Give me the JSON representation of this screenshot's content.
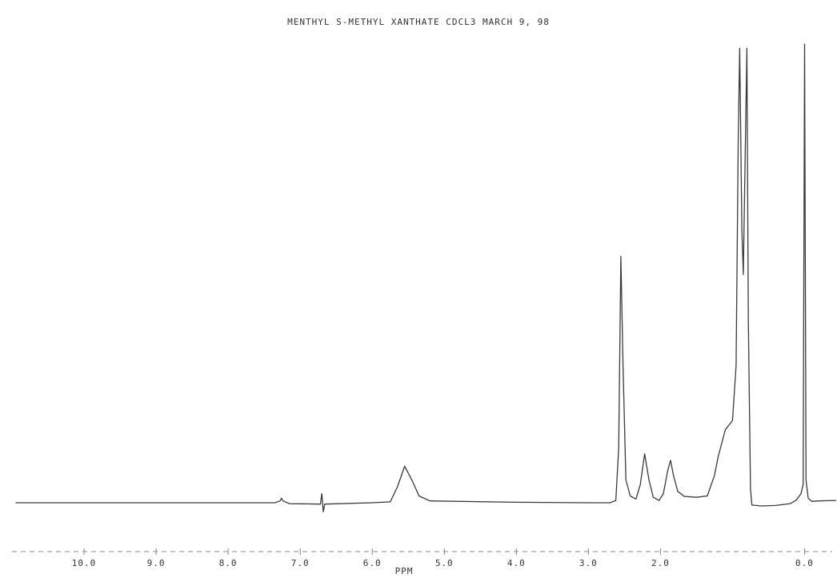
{
  "chart_data": {
    "type": "line",
    "title": "MENTHYL S-METHYL XANTHATE CDCL3 MARCH 9, 98",
    "x_label": "PPM",
    "xlim": [
      11,
      -0.45
    ],
    "ylim": [
      0,
      100
    ],
    "xticks": [
      {
        "value": 10,
        "label": "10.0"
      },
      {
        "value": 9,
        "label": "9.0"
      },
      {
        "value": 8,
        "label": "8.0"
      },
      {
        "value": 7,
        "label": "7.0"
      },
      {
        "value": 6,
        "label": "6.0"
      },
      {
        "value": 5,
        "label": "5.0"
      },
      {
        "value": 4,
        "label": "4.0"
      },
      {
        "value": 3,
        "label": "3.0"
      },
      {
        "value": 2,
        "label": "2.0"
      },
      {
        "value": 0,
        "label": "0.0"
      }
    ],
    "series": [
      {
        "color": "#3a3a3a",
        "x": [
          10.95,
          9.0,
          7.35,
          7.28,
          7.26,
          7.24,
          7.15,
          6.72,
          6.7,
          6.68,
          6.66,
          6.0,
          5.75,
          5.65,
          5.55,
          5.45,
          5.35,
          5.2,
          4.0,
          3.0,
          2.7,
          2.62,
          2.58,
          2.55,
          2.52,
          2.48,
          2.42,
          2.34,
          2.28,
          2.22,
          2.16,
          2.1,
          2.02,
          1.96,
          1.9,
          1.86,
          1.82,
          1.76,
          1.67,
          1.5,
          1.35,
          1.25,
          1.2,
          1.1,
          1.0,
          0.95,
          0.92,
          0.9,
          0.87,
          0.85,
          0.83,
          0.8,
          0.78,
          0.75,
          0.73,
          0.6,
          0.4,
          0.2,
          0.12,
          0.05,
          0.02,
          0.0,
          -0.02,
          -0.05,
          -0.1,
          -0.2,
          -0.44
        ],
        "values": [
          0,
          0,
          0,
          0.4,
          1.0,
          0.4,
          -0.2,
          -0.3,
          2.0,
          -2.0,
          -0.3,
          0,
          0.2,
          3.5,
          8.0,
          5.0,
          1.5,
          0.4,
          0.1,
          0,
          0,
          0.5,
          12,
          54,
          30,
          5,
          1.5,
          0.8,
          4,
          10.7,
          5,
          1.2,
          0.5,
          2,
          7,
          9.3,
          6,
          2.5,
          1.4,
          1.2,
          1.5,
          6,
          10,
          16,
          18,
          30,
          80,
          99.6,
          60,
          50,
          70,
          99.6,
          40,
          3,
          -0.5,
          -0.7,
          -0.6,
          -0.2,
          0.5,
          2,
          4,
          100.5,
          5,
          1,
          0.3,
          0.4,
          0.5
        ]
      }
    ]
  }
}
